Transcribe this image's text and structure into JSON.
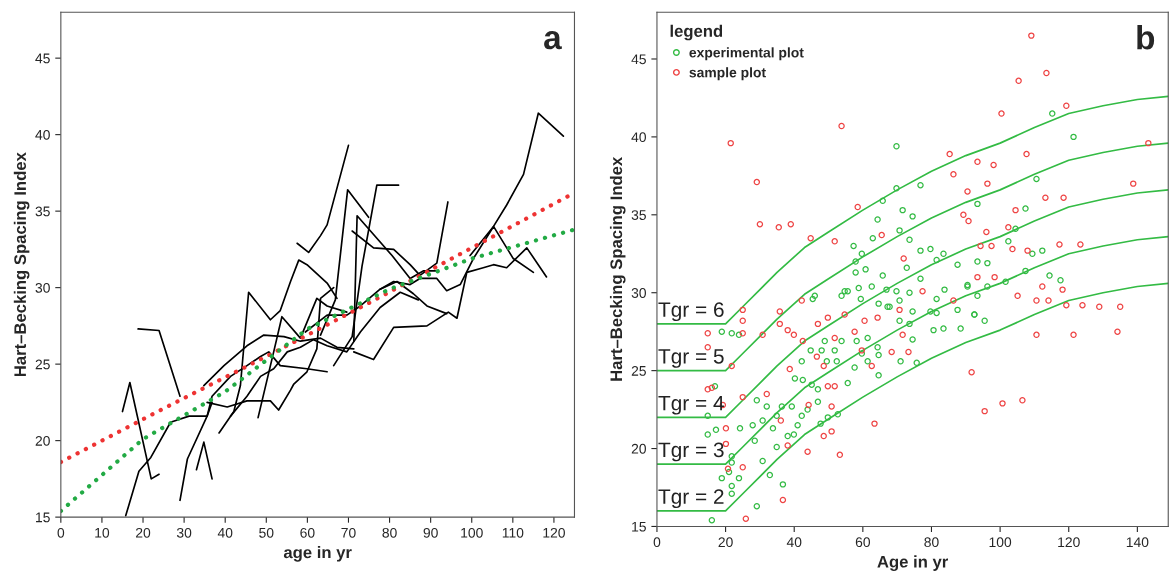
{
  "chart_data": [
    {
      "type": "line",
      "xlabel": "age in yr",
      "ylabel": "Hart–Becking Spacing Index",
      "annotations": [
        "a"
      ],
      "xlim": [
        0,
        125
      ],
      "ylim": [
        15,
        48
      ],
      "xticks": [
        0,
        10,
        20,
        30,
        40,
        50,
        60,
        70,
        80,
        90,
        100,
        110,
        120
      ],
      "yticks": [
        15,
        20,
        25,
        30,
        35,
        40,
        45
      ],
      "grid": false,
      "legend": false,
      "series": [
        {
          "color": "#000000",
          "x": [
            99.6,
            105.3,
            108.5,
            112.6,
            116.2,
            122.3
          ],
          "values": [
            32.1,
            34.0,
            35.4,
            37.4,
            41.4,
            39.9
          ]
        },
        {
          "color": "#000000",
          "x": [
            57.5,
            60.3,
            63.2,
            64.8,
            70.0
          ],
          "values": [
            32.9,
            32.3,
            33.4,
            34.1,
            39.3
          ]
        },
        {
          "color": "#000000",
          "x": [
            18.8,
            23.9,
            29.0
          ],
          "values": [
            27.3,
            27.2,
            22.9
          ]
        },
        {
          "color": "#000000",
          "x": [
            15.0,
            16.8,
            22.0,
            23.9
          ],
          "values": [
            21.9,
            23.8,
            17.5,
            17.8
          ]
        },
        {
          "color": "#000000",
          "x": [
            15.8,
            19.0,
            21.9,
            26.7,
            31.2,
            35.6,
            36.8
          ],
          "values": [
            15.1,
            18.0,
            18.9,
            21.2,
            21.6,
            21.6,
            22.5
          ]
        },
        {
          "color": "#000000",
          "x": [
            29.0,
            30.8,
            35.6,
            36.8,
            41.3,
            45.3,
            48.6,
            50.6,
            53.4,
            59.9,
            64.8
          ],
          "values": [
            16.1,
            18.8,
            21.6,
            22.9,
            24.2,
            24.9,
            25.5,
            25.8,
            24.9,
            24.7,
            24.5
          ]
        },
        {
          "color": "#000000",
          "x": [
            33.0,
            34.8,
            36.8
          ],
          "values": [
            18.1,
            19.9,
            17.5
          ]
        },
        {
          "color": "#000000",
          "x": [
            38.5,
            42.1,
            43.7,
            45.7,
            51.0,
            53.4,
            55.9,
            57.9,
            59.9,
            64.8,
            67.2
          ],
          "values": [
            20.5,
            21.9,
            23.6,
            29.7,
            27.9,
            28.5,
            30.4,
            31.8,
            31.5,
            30.3,
            29.3
          ]
        },
        {
          "color": "#000000",
          "x": [
            63.2,
            66.8,
            69.8,
            74.9
          ],
          "values": [
            26.9,
            29.2,
            36.4,
            34.6
          ]
        },
        {
          "color": "#000000",
          "x": [
            71.3,
            72.1,
            80.6,
            85.0,
            88.3,
            91.5
          ],
          "values": [
            26.5,
            34.7,
            32.1,
            30.6,
            31.1,
            31.1
          ]
        },
        {
          "color": "#000000",
          "x": [
            66.4,
            70.9,
            73.3,
            76.9,
            82.2
          ],
          "values": [
            24.9,
            26.8,
            31.4,
            36.7,
            36.7
          ]
        },
        {
          "color": "#000000",
          "x": [
            70.9,
            76.1,
            81.0,
            85.0,
            87.4,
            91.5,
            94.2
          ],
          "values": [
            33.7,
            32.6,
            32.5,
            31.5,
            30.8,
            31.6,
            35.6
          ]
        },
        {
          "color": "#000000",
          "x": [
            71.3,
            76.1,
            81.0,
            89.1,
            94.3,
            96.4,
            98.8,
            102.8,
            105.3,
            108.5,
            113.4,
            118.2
          ],
          "values": [
            25.8,
            25.3,
            27.4,
            27.5,
            28.4,
            28.0,
            31.0,
            31.3,
            31.5,
            31.3,
            32.6,
            30.7
          ]
        },
        {
          "color": "#000000",
          "x": [
            77.7,
            81.0,
            85.0,
            87.4,
            91.5,
            93.9,
            97.2,
            100.4,
            105.3,
            110.1,
            115.0
          ],
          "values": [
            29.9,
            30.4,
            30.2,
            30.6,
            30.6,
            29.8,
            30.2,
            31.9,
            34.0,
            31.9,
            31.0
          ]
        },
        {
          "color": "#000000",
          "x": [
            59.5,
            64.8,
            69.6,
            72.9,
            77.7,
            81.8,
            85.8,
            89.1,
            93.9
          ],
          "values": [
            27.1,
            28.2,
            28.2,
            28.8,
            29.9,
            30.4,
            29.6,
            28.8,
            28.3
          ]
        },
        {
          "color": "#000000",
          "x": [
            41.3,
            45.3,
            48.6,
            51.8,
            55.1,
            58.3,
            61.5,
            64.8,
            69.6,
            72.9,
            77.7,
            82.6,
            87.0
          ],
          "values": [
            21.6,
            22.9,
            24.2,
            24.7,
            25.8,
            26.1,
            26.6,
            26.2,
            25.8,
            27.1,
            28.7,
            29.7,
            29.2
          ]
        },
        {
          "color": "#000000",
          "x": [
            34.8,
            39.7,
            45.3,
            49.4,
            54.3,
            58.3,
            63.2,
            67.2,
            71.3
          ],
          "values": [
            23.6,
            24.9,
            26.2,
            26.9,
            26.8,
            26.5,
            26.7,
            26.1,
            26.0
          ]
        },
        {
          "color": "#000000",
          "x": [
            48.0,
            51.8,
            53.8,
            58.3,
            62.3,
            64.8,
            69.6
          ],
          "values": [
            21.5,
            25.8,
            28.1,
            26.7,
            29.3,
            28.8,
            28.4
          ]
        },
        {
          "color": "#000000",
          "x": [
            35.6,
            40.5,
            45.3,
            51.0,
            53.0,
            55.9,
            56.7,
            59.9,
            62.3,
            63.2,
            66.4
          ],
          "values": [
            22.5,
            22.2,
            22.6,
            22.6,
            22.0,
            23.3,
            23.7,
            24.5,
            26.0,
            29.3,
            30.0
          ]
        },
        {
          "color": "#ee3333",
          "line_style": "dotted",
          "x": [
            0,
            25,
            50,
            75,
            100,
            125
          ],
          "values": [
            18.6,
            22.1,
            25.5,
            29.0,
            32.6,
            36.2
          ]
        },
        {
          "color": "#22aa44",
          "line_style": "dotted",
          "x": [
            0,
            20,
            40,
            60,
            80,
            100,
            125
          ],
          "values": [
            15.4,
            20.1,
            23.2,
            27.3,
            29.9,
            31.9,
            33.8
          ]
        }
      ]
    },
    {
      "type": "scatter",
      "xlabel": "Age in yr",
      "ylabel": "Hart–Becking Spacing Index",
      "legend_title": "legend",
      "legend": "top left",
      "grid": false,
      "xlim": [
        0,
        149
      ],
      "ylim": [
        15,
        48
      ],
      "xticks": [
        0,
        20,
        40,
        60,
        80,
        100,
        120,
        140
      ],
      "yticks": [
        15,
        20,
        25,
        30,
        35,
        40,
        45
      ],
      "annotations": [
        "b"
      ],
      "series": [
        {
          "name": "experimental plot",
          "type": "scatter",
          "marker": "circle",
          "color": "#33bb44",
          "x": [
            69.8,
            121.4,
            115.2,
            110.6,
            107.4,
            104.5,
            93.4,
            76.8,
            69.8,
            65.8,
            71.6,
            74.5,
            64.3,
            70.7,
            62.9,
            73.6,
            57.3,
            59.7,
            57.9,
            79.7,
            81.5,
            83.5,
            76.8,
            87.6,
            93.4,
            96.3,
            102.4,
            109.4,
            112.3,
            107.4,
            114.4,
            117.6,
            101.6,
            96.3,
            90.5,
            93.4,
            83.8,
            76.8,
            72.8,
            65.8,
            60.8,
            57.9,
            54.7,
            58.8,
            62.6,
            66.9,
            69.8,
            73.6,
            81.5,
            53.8,
            46.0,
            45.4,
            59.4,
            64.6,
            67.8,
            70.7,
            74.5,
            79.7,
            81.5,
            87.6,
            92.5,
            18.9,
            21.8,
            23.9,
            14.8,
            16.9,
            14.8,
            17.2,
            21.8,
            21.8,
            21.0,
            23.9,
            21.8,
            18.9,
            21.8,
            16.0,
            29.1,
            32.9,
            30.8,
            36.7,
            34.9,
            28.5,
            24.2,
            27.9,
            30.8,
            33.8,
            29.1,
            32.0,
            34.9,
            36.4,
            39.3,
            41.0,
            42.2,
            38.1,
            39.9,
            43.9,
            46.9,
            42.5,
            45.1,
            46.9,
            40.2,
            42.2,
            44.8,
            48.0,
            48.9,
            49.5,
            51.8,
            53.8,
            52.4,
            55.6,
            57.6,
            61.4,
            64.6,
            64.3,
            61.4,
            58.2,
            59.7,
            55.6,
            67.2,
            70.7,
            71.0,
            75.7,
            73.6,
            74.5,
            80.6,
            83.5,
            88.5,
            92.5,
            95.5,
            90.5,
            64.6,
            47.7,
            49.8,
            52.7
          ],
          "values": [
            39.4,
            40.0,
            41.5,
            37.3,
            35.4,
            34.1,
            35.7,
            36.9,
            36.7,
            35.9,
            35.3,
            34.9,
            34.7,
            34.0,
            33.5,
            33.4,
            33.0,
            32.5,
            32.0,
            32.8,
            32.1,
            32.5,
            32.7,
            31.8,
            32.0,
            31.9,
            33.3,
            32.5,
            32.7,
            31.4,
            31.1,
            30.8,
            30.7,
            30.4,
            30.4,
            29.8,
            30.2,
            30.9,
            31.6,
            31.1,
            31.5,
            31.3,
            30.1,
            30.3,
            30.4,
            30.2,
            30.1,
            30.0,
            29.6,
            29.8,
            29.8,
            29.6,
            29.6,
            29.3,
            29.1,
            29.5,
            28.8,
            28.8,
            28.7,
            28.9,
            28.6,
            27.5,
            27.4,
            27.3,
            22.1,
            24.0,
            20.9,
            21.2,
            19.5,
            19.1,
            18.5,
            18.1,
            17.6,
            18.1,
            17.1,
            15.4,
            16.3,
            18.3,
            19.2,
            17.7,
            20.1,
            20.5,
            21.3,
            21.5,
            21.8,
            21.3,
            23.1,
            22.7,
            22.1,
            22.7,
            22.7,
            21.5,
            22.1,
            20.8,
            20.9,
            22.5,
            23.0,
            24.4,
            24.1,
            23.8,
            24.5,
            25.6,
            26.3,
            26.3,
            26.9,
            25.6,
            26.3,
            26.9,
            25.6,
            24.2,
            25.2,
            25.6,
            26.0,
            26.5,
            27.1,
            26.9,
            26.1,
            30.1,
            29.1,
            28.2,
            25.6,
            25.5,
            28.0,
            27.0,
            27.6,
            27.7,
            27.7,
            28.6,
            28.2,
            30.5,
            24.7,
            21.6,
            22.0,
            22.2
          ]
        },
        {
          "name": "sample plot",
          "type": "scatter",
          "marker": "circle",
          "color": "#ee4444",
          "x": [
            21.5,
            109.1,
            105.4,
            113.5,
            100.4,
            119.3,
            53.8,
            29.1,
            30.0,
            35.5,
            39.0,
            44.8,
            51.8,
            58.5,
            65.5,
            85.3,
            86.4,
            90.5,
            93.4,
            98.1,
            107.7,
            104.5,
            113.2,
            118.5,
            138.8,
            143.2,
            117.3,
            123.4,
            105.1,
            110.6,
            119.3,
            124.0,
            128.9,
            135.0,
            134.2,
            121.4,
            110.6,
            91.7,
            106.5,
            100.7,
            95.5,
            63.4,
            53.3,
            43.9,
            50.9,
            48.6,
            36.7,
            25.9,
            20.7,
            20.1,
            20.1,
            19.2,
            14.8,
            16.0,
            14.8,
            14.8,
            25.0,
            25.0,
            25.0,
            30.8,
            35.8,
            35.8,
            38.1,
            42.5,
            39.9,
            42.2,
            49.8,
            46.9,
            54.7,
            57.6,
            60.5,
            64.3,
            70.7,
            71.6,
            73.3,
            68.4,
            62.6,
            59.7,
            51.8,
            46.6,
            48.6,
            51.8,
            49.8,
            44.2,
            50.9,
            38.7,
            32.0,
            25.0,
            36.1,
            38.1,
            25.0,
            21.8,
            96.3,
            89.3,
            90.8,
            96.0,
            102.4,
            94.3,
            97.5,
            103.6,
            108.0,
            93.4,
            98.4,
            112.3,
            118.2,
            114.1,
            86.4,
            77.4,
            71.9
          ],
          "values": [
            39.6,
            46.5,
            43.6,
            44.1,
            41.5,
            42.0,
            40.7,
            37.1,
            34.4,
            34.2,
            34.4,
            33.5,
            33.3,
            35.5,
            33.7,
            38.9,
            37.6,
            36.5,
            38.4,
            38.2,
            38.9,
            35.3,
            36.1,
            36.1,
            37.0,
            39.6,
            33.1,
            33.1,
            29.8,
            29.5,
            29.2,
            29.2,
            29.1,
            29.1,
            27.5,
            27.3,
            27.3,
            24.9,
            23.1,
            22.9,
            22.4,
            21.6,
            19.6,
            19.8,
            21.1,
            20.8,
            16.7,
            15.5,
            18.7,
            20.3,
            21.3,
            22.8,
            23.8,
            23.9,
            26.5,
            27.4,
            28.9,
            28.2,
            27.4,
            27.3,
            28.8,
            28.0,
            27.6,
            26.9,
            27.3,
            29.5,
            28.4,
            28.0,
            28.6,
            27.5,
            28.2,
            28.4,
            28.9,
            27.3,
            26.2,
            26.2,
            25.3,
            26.3,
            27.1,
            25.9,
            25.3,
            24.0,
            24.0,
            22.8,
            22.7,
            25.1,
            23.5,
            23.3,
            21.8,
            20.2,
            18.8,
            25.3,
            37.0,
            35.0,
            34.6,
            33.9,
            34.2,
            33.0,
            33.0,
            32.8,
            32.7,
            31.0,
            31.0,
            30.4,
            30.2,
            29.5,
            29.5,
            30.1,
            32.2
          ]
        },
        {
          "type": "line",
          "name": "Tgr = 6",
          "color": "#33bb44",
          "x": [
            0,
            20,
            25,
            30,
            35,
            43,
            50,
            60,
            70,
            80,
            90,
            100,
            110,
            120,
            130,
            140,
            149
          ],
          "values": [
            28,
            28,
            29.1,
            30.2,
            31.3,
            32.9,
            33.9,
            35.3,
            36.6,
            37.8,
            38.8,
            39.6,
            40.6,
            41.5,
            42.0,
            42.4,
            42.6
          ]
        },
        {
          "type": "line",
          "name": "Tgr = 5",
          "color": "#33bb44",
          "x": [
            0,
            20,
            25,
            30,
            35,
            43,
            50,
            60,
            70,
            80,
            90,
            100,
            110,
            120,
            130,
            140,
            149
          ],
          "values": [
            25,
            25,
            26.1,
            27.2,
            28.3,
            29.9,
            30.9,
            32.3,
            33.6,
            34.8,
            35.8,
            36.6,
            37.6,
            38.5,
            39.0,
            39.4,
            39.6
          ]
        },
        {
          "type": "line",
          "name": "Tgr = 4",
          "color": "#33bb44",
          "x": [
            0,
            20,
            25,
            30,
            35,
            43,
            50,
            60,
            70,
            80,
            90,
            100,
            110,
            120,
            130,
            140,
            149
          ],
          "values": [
            22,
            22,
            23.1,
            24.2,
            25.3,
            26.9,
            27.9,
            29.3,
            30.6,
            31.8,
            32.8,
            33.6,
            34.6,
            35.5,
            36.0,
            36.4,
            36.6
          ]
        },
        {
          "type": "line",
          "name": "Tgr = 3",
          "color": "#33bb44",
          "x": [
            0,
            20,
            25,
            30,
            35,
            43,
            50,
            60,
            70,
            80,
            90,
            100,
            110,
            120,
            130,
            140,
            149
          ],
          "values": [
            19,
            19,
            20.1,
            21.2,
            22.3,
            23.9,
            24.9,
            26.3,
            27.6,
            28.8,
            29.8,
            30.6,
            31.6,
            32.5,
            33.0,
            33.4,
            33.6
          ]
        },
        {
          "type": "line",
          "name": "Tgr = 2",
          "color": "#33bb44",
          "x": [
            0,
            20,
            25,
            30,
            35,
            43,
            50,
            60,
            70,
            80,
            90,
            100,
            110,
            120,
            130,
            140,
            149
          ],
          "values": [
            16,
            16,
            17.1,
            18.2,
            19.3,
            20.9,
            21.9,
            23.3,
            24.6,
            25.8,
            26.8,
            27.6,
            28.6,
            29.5,
            30.0,
            30.4,
            30.6
          ]
        }
      ]
    }
  ]
}
